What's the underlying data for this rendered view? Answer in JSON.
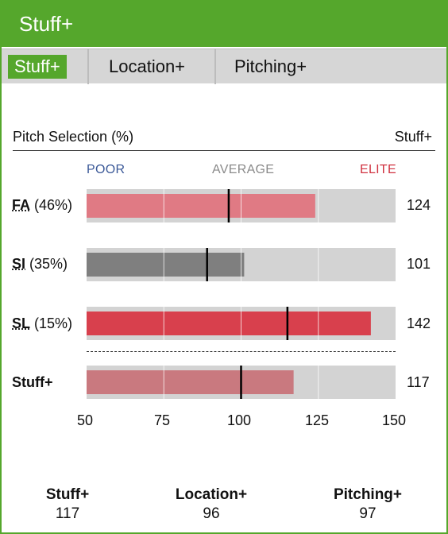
{
  "header": {
    "title": "Stuff+"
  },
  "tabs": [
    {
      "label": "Stuff+",
      "active": true
    },
    {
      "label": "Location+",
      "active": false
    },
    {
      "label": "Pitching+",
      "active": false
    }
  ],
  "columns": {
    "left": "Pitch Selection (%)",
    "right": "Stuff+"
  },
  "scale_labels": {
    "poor": "POOR",
    "average": "AVERAGE",
    "elite": "ELITE"
  },
  "rows": [
    {
      "abbr": "FA",
      "pct": "(46%)",
      "value": "124"
    },
    {
      "abbr": "SI",
      "pct": "(35%)",
      "value": "101"
    },
    {
      "abbr": "SL",
      "pct": "(15%)",
      "value": "142"
    },
    {
      "label": "Stuff+",
      "value": "117"
    }
  ],
  "chart_data": {
    "type": "bar",
    "orientation": "horizontal",
    "categories": [
      "FA (46%)",
      "SI (35%)",
      "SL (15%)",
      "Stuff+"
    ],
    "values": [
      124,
      101,
      142,
      117
    ],
    "markers": [
      96,
      89,
      115,
      100
    ],
    "bar_colors": [
      "#e07a84",
      "#7f7f7f",
      "#d8404d",
      "#c9797f"
    ],
    "xlim": [
      50,
      150
    ],
    "xticks": [
      "50",
      "75",
      "100",
      "125",
      "150"
    ],
    "grid": true
  },
  "summary": [
    {
      "label": "Stuff+",
      "value": "117"
    },
    {
      "label": "Location+",
      "value": "96"
    },
    {
      "label": "Pitching+",
      "value": "97"
    }
  ],
  "colors": {
    "brand": "#55a72c",
    "poor": "#3b5998",
    "average": "#8a8a8a",
    "elite": "#d0313f"
  }
}
